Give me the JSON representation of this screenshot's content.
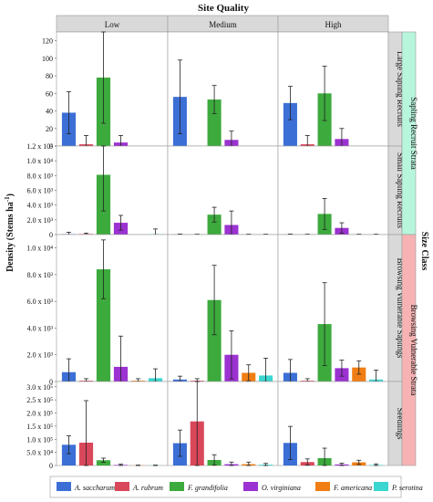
{
  "chart_data": {
    "type": "bar",
    "title": "Site Quality",
    "ylabel": "Density (Stems ha",
    "ylabel_sup": "-1",
    "ylabel_close": ")",
    "size_class_label": "Size Class",
    "columns": [
      "Low",
      "Medium",
      "High"
    ],
    "strata": [
      {
        "label": "Sapling Recruit Strata",
        "color": "#b8f5dd"
      },
      {
        "label": "Browsing Vulnerable Strata",
        "color": "#f7b3b3"
      }
    ],
    "species": [
      {
        "name": "A. saccharum",
        "color": "#3c6fd6"
      },
      {
        "name": "A. rubrum",
        "color": "#d9475b"
      },
      {
        "name": "F. grandifolia",
        "color": "#3daa3d"
      },
      {
        "name": "O. virginiana",
        "color": "#9b32d1"
      },
      {
        "name": "F. americana",
        "color": "#f07e14"
      },
      {
        "name": "P. serotina",
        "color": "#3bd6d0"
      }
    ],
    "rows": [
      {
        "label": "Large Sapling Recruits",
        "ylim": [
          0,
          130
        ],
        "ticks": [
          0,
          20,
          40,
          60,
          80,
          100,
          120
        ],
        "tick_labels": [
          "0",
          "20",
          "40",
          "60",
          "80",
          "100",
          "120"
        ],
        "groups": [
          {
            "values": [
              38,
              2,
              78,
              4,
              0,
              0
            ],
            "err": [
              24,
              10,
              52,
              8,
              0,
              0
            ]
          },
          {
            "values": [
              56,
              0,
              53,
              7,
              0,
              0
            ],
            "err": [
              42,
              0,
              16,
              10,
              0,
              0
            ]
          },
          {
            "values": [
              49,
              2,
              60,
              8,
              0,
              0
            ],
            "err": [
              19,
              10,
              31,
              12,
              0,
              0
            ]
          }
        ]
      },
      {
        "label": "Small Sapling Recruits",
        "ylim": [
          0,
          12000
        ],
        "ticks": [
          0,
          2000,
          4000,
          6000,
          8000,
          10000,
          12000
        ],
        "tick_labels": [
          "0",
          "2.0 x 10³",
          "4.0 x 10³",
          "6.0 x 10³",
          "8.0 x 10³",
          "1.0 x 10⁴",
          "1.2 x 10⁴"
        ],
        "groups": [
          {
            "values": [
              60,
              80,
              8100,
              1600,
              0,
              60
            ],
            "err": [
              260,
              120,
              4900,
              1000,
              0,
              700
            ]
          },
          {
            "values": [
              20,
              20,
              2700,
              1300,
              20,
              20
            ],
            "err": [
              60,
              40,
              1000,
              1900,
              40,
              40
            ]
          },
          {
            "values": [
              20,
              20,
              2800,
              900,
              20,
              20
            ],
            "err": [
              60,
              40,
              2100,
              700,
              40,
              40
            ]
          }
        ]
      },
      {
        "label": "Browsing Vulnerable Saplings",
        "ylim": [
          0,
          11000
        ],
        "ticks": [
          0,
          2000,
          4000,
          6000,
          8000,
          10000
        ],
        "tick_labels": [
          "0",
          "2.0 x 10³",
          "4.0 x 10³",
          "6.0 x 10³",
          "8.0 x 10³",
          "1.0 x 10⁴"
        ],
        "groups": [
          {
            "values": [
              700,
              60,
              8400,
              1100,
              60,
              250
            ],
            "err": [
              1000,
              150,
              2200,
              2300,
              150,
              700
            ]
          },
          {
            "values": [
              150,
              60,
              6100,
              2000,
              650,
              450
            ],
            "err": [
              250,
              150,
              2600,
              1800,
              600,
              1300
            ]
          },
          {
            "values": [
              650,
              60,
              4300,
              1000,
              1050,
              150
            ],
            "err": [
              1000,
              150,
              3100,
              600,
              500,
              700
            ]
          }
        ]
      },
      {
        "label": "Seedlings",
        "ylim": [
          0,
          320000
        ],
        "ticks": [
          0,
          50000,
          100000,
          150000,
          200000,
          250000,
          300000
        ],
        "tick_labels": [
          "0",
          "5.0 x 10⁴",
          "1.0 x 10⁵",
          "1.5 x 10⁵",
          "2.0 x 10⁵",
          "2.5 x 10⁵",
          "3.0 x 10⁵"
        ],
        "groups": [
          {
            "values": [
              79000,
              87000,
              20000,
              2000,
              500,
              500
            ],
            "err": [
              34000,
              160000,
              8000,
              3000,
              1000,
              1000
            ]
          },
          {
            "values": [
              85000,
              168000,
              21000,
              5000,
              5000,
              3000
            ],
            "err": [
              50000,
              220000,
              20000,
              8000,
              8000,
              5000
            ]
          },
          {
            "values": [
              86000,
              13000,
              28000,
              4000,
              12000,
              2000
            ],
            "err": [
              63000,
              12000,
              38000,
              5000,
              8000,
              4000
            ]
          }
        ]
      }
    ]
  }
}
